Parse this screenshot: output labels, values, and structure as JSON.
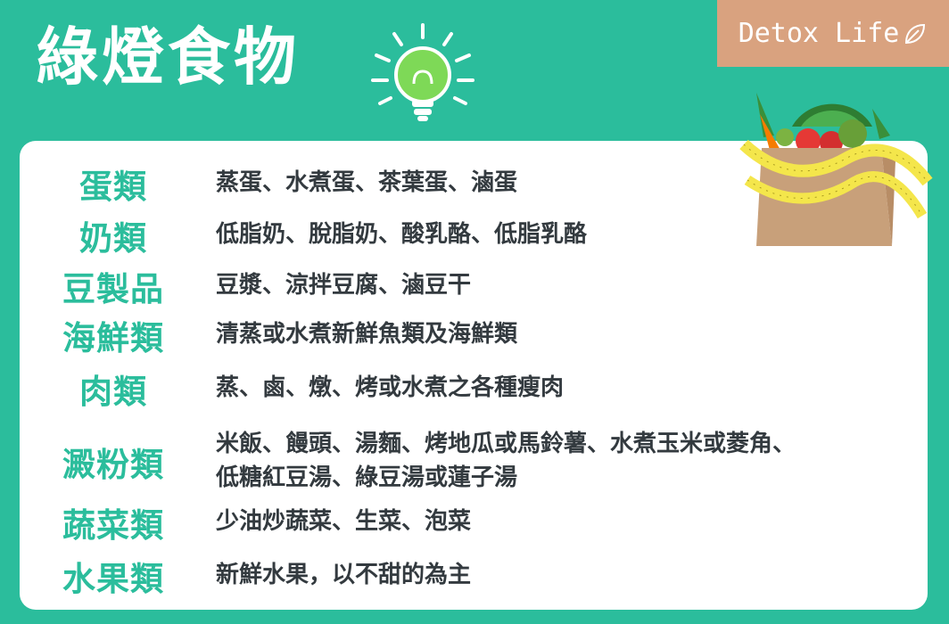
{
  "header": {
    "title": "綠燈食物",
    "brand": "Detox Life"
  },
  "icons": {
    "bulb": "lightbulb-icon",
    "brand_leaf": "leaf-icon",
    "illustration": "vegetable-basket-measuring-tape-icon"
  },
  "colors": {
    "background": "#2bbd9c",
    "card": "#ffffff",
    "category_text": "#2bbd9c",
    "item_text": "#333a3f",
    "brand_bg": "#d9a27f"
  },
  "categories": [
    {
      "name": "蛋類",
      "items": [
        "蒸蛋、水煮蛋、茶葉蛋、滷蛋"
      ]
    },
    {
      "name": "奶類",
      "items": [
        "低脂奶、脫脂奶、酸乳酪、低脂乳酪"
      ]
    },
    {
      "name": "豆製品",
      "items": [
        "豆漿、涼拌豆腐、滷豆干"
      ]
    },
    {
      "name": "海鮮類",
      "items": [
        "清蒸或水煮新鮮魚類及海鮮類"
      ]
    },
    {
      "name": "肉類",
      "items": [
        "蒸、鹵、燉、烤或水煮之各種瘦肉"
      ]
    },
    {
      "name": "澱粉類",
      "items": [
        "米飯、饅頭、湯麵、烤地瓜或馬鈴薯、水煮玉米或菱角、",
        "低糖紅豆湯、綠豆湯或蓮子湯"
      ]
    },
    {
      "name": "蔬菜類",
      "items": [
        "少油炒蔬菜、生菜、泡菜"
      ]
    },
    {
      "name": "水果類",
      "items": [
        "新鮮水果，以不甜的為主"
      ]
    }
  ]
}
